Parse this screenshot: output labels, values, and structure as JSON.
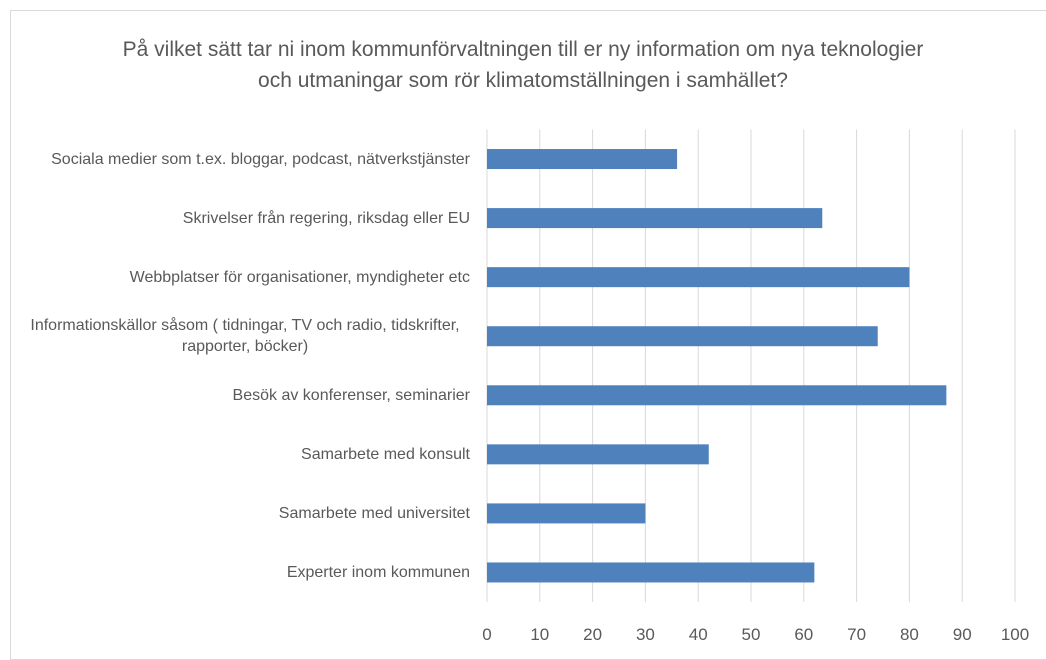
{
  "chart_data": {
    "type": "bar",
    "orientation": "horizontal",
    "title": "På vilket sätt tar ni inom kommunförvaltningen till er ny information om nya teknologier och utmaningar som rör klimatomställningen i samhället?",
    "categories": [
      "Sociala medier som t.ex. bloggar, podcast, nätverkstjänster",
      "Skrivelser från regering, riksdag eller EU",
      "Webbplatser för organisationer, myndigheter etc",
      "Informationskällor såsom ( tidningar, TV och radio, tidskrifter, rapporter, böcker)",
      "Besök av konferenser, seminarier",
      "Samarbete med konsult",
      "Samarbete med universitet",
      "Experter inom kommunen"
    ],
    "values": [
      36,
      63.5,
      80,
      74,
      87,
      42,
      30,
      62
    ],
    "color": "#4f81bd",
    "xlim": [
      0,
      100
    ],
    "xticks": [
      0,
      10,
      20,
      30,
      40,
      50,
      60,
      70,
      80,
      90,
      100
    ],
    "grid": true
  }
}
